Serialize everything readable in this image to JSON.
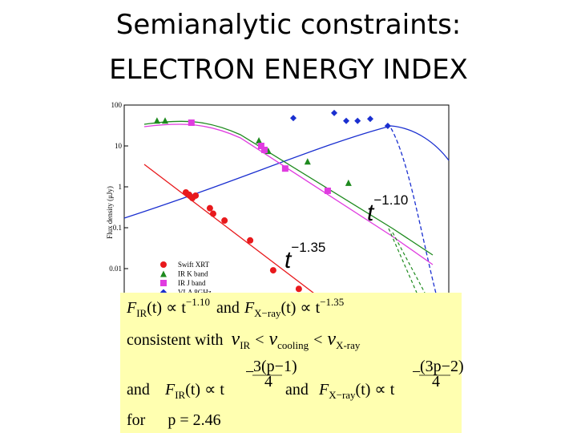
{
  "title": [
    "Semianalytic constraints:",
    "ELECTRON ENERGY INDEX"
  ],
  "chart_data": {
    "type": "scatter",
    "y_label": "Flux density (μJy)",
    "yscale": "log",
    "ylim": [
      0.001,
      100
    ],
    "yticks": [
      100,
      10,
      1,
      0.1,
      0.01
    ],
    "xlim": [
      0,
      100
    ],
    "annotations": [
      {
        "base": "t",
        "exponent": "−1.10"
      },
      {
        "base": "t",
        "exponent": "−1.35"
      }
    ],
    "series": [
      {
        "name": "Swift XRT",
        "color": "#e8191c",
        "marker": "circle",
        "x": [
          19,
          20,
          21,
          22,
          26.4,
          27.4,
          30.9,
          38.8,
          45.9,
          53.8
        ],
        "values": [
          0.73,
          0.64,
          0.53,
          0.61,
          0.3,
          0.22,
          0.15,
          0.049,
          0.0091,
          0.0032
        ]
      },
      {
        "name": "IR K band",
        "color": "#1e8a1e",
        "marker": "triangle",
        "x": [
          10.1,
          12.6,
          41.5,
          44.4,
          56.5,
          69.1
        ],
        "values": [
          42,
          42,
          13.7,
          7.6,
          4.2,
          1.26
        ]
      },
      {
        "name": "IR J band",
        "color": "#e03ce0",
        "marker": "square",
        "x": [
          20.7,
          42.2,
          43.2,
          49.6,
          62.7
        ],
        "values": [
          37,
          10,
          8,
          2.8,
          0.8
        ]
      },
      {
        "name": "VLA 8GHz",
        "color": "#1a2fd0",
        "marker": "diamond",
        "x": [
          52.1,
          64.7,
          68.4,
          71.9,
          75.8,
          81.2
        ],
        "values": [
          48,
          64,
          41,
          41,
          46,
          31
        ]
      }
    ]
  },
  "equations": {
    "row1": [
      "F",
      "IR",
      "(t) ∝ t",
      "−1.10",
      "and",
      "F",
      "X−ray",
      "(t) ∝ t",
      "−1.35"
    ],
    "row2": [
      "consistent with",
      "ν",
      "IR",
      "<",
      "ν",
      "cooling",
      "<",
      "ν",
      "X-ray"
    ],
    "row3": [
      "and",
      "F",
      "IR",
      "(t) ∝ t",
      "−",
      "3(p−1)",
      "4",
      "and",
      "F",
      "X−ray",
      "(t) ∝ t",
      "−",
      "(3p−2)",
      "4"
    ],
    "row4": [
      "for",
      "p = 2.46"
    ]
  }
}
